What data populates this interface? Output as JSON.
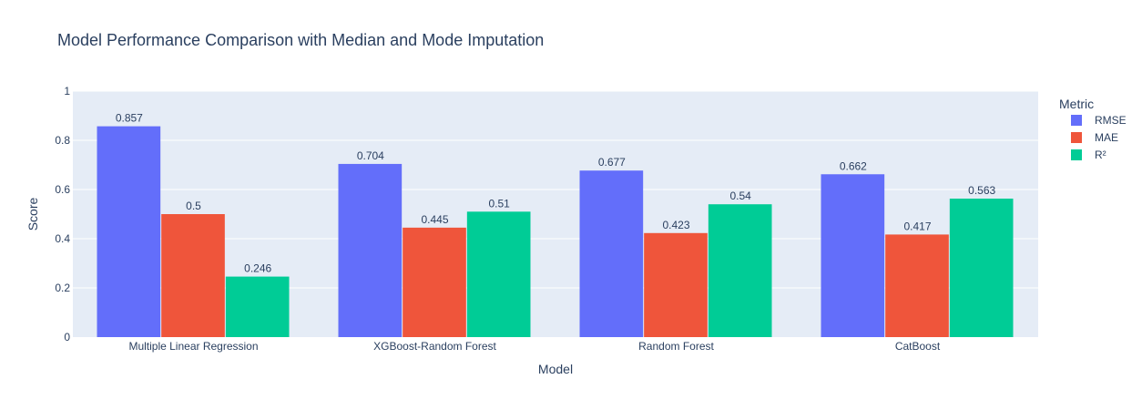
{
  "chart_data": {
    "type": "bar",
    "title": "Model Performance Comparison with Median and Mode Imputation",
    "xlabel": "Model",
    "ylabel": "Score",
    "ylim": [
      0,
      1
    ],
    "yticks": [
      "0",
      "0.2",
      "0.4",
      "0.6",
      "0.8",
      "1"
    ],
    "grid": true,
    "legend": {
      "title": "Metric",
      "placement": "right"
    },
    "categories": [
      "Multiple Linear Regression",
      "XGBoost-Random Forest",
      "Random Forest",
      "CatBoost"
    ],
    "series": [
      {
        "name": "RMSE",
        "color": "#636efa",
        "values": [
          0.857,
          0.704,
          0.677,
          0.662
        ],
        "labels": [
          "0.857",
          "0.704",
          "0.677",
          "0.662"
        ]
      },
      {
        "name": "MAE",
        "color": "#ef553b",
        "values": [
          0.5,
          0.445,
          0.423,
          0.417
        ],
        "labels": [
          "0.5",
          "0.445",
          "0.423",
          "0.417"
        ]
      },
      {
        "name": "R²",
        "color": "#00cc96",
        "values": [
          0.246,
          0.51,
          0.54,
          0.563
        ],
        "labels": [
          "0.246",
          "0.51",
          "0.54",
          "0.563"
        ]
      }
    ],
    "plot_background": "#e5ecf6",
    "gridline_color": "#ffffff"
  }
}
